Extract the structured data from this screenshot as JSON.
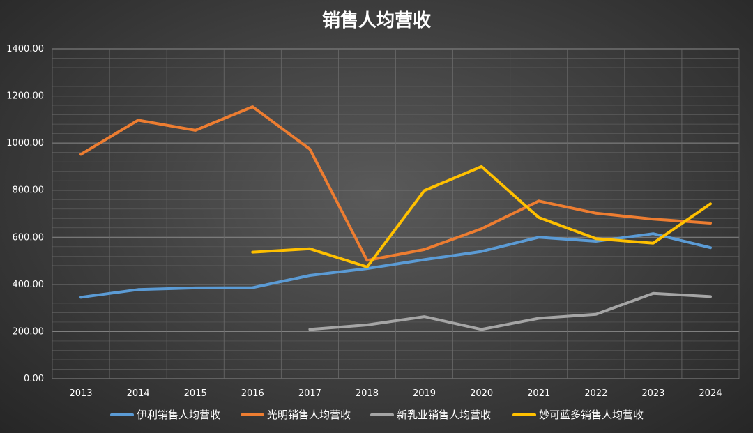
{
  "chart_data": {
    "type": "line",
    "title": "销售人均营收",
    "xlabel": "",
    "ylabel": "",
    "categories": [
      "2013",
      "2014",
      "2015",
      "2016",
      "2017",
      "2018",
      "2019",
      "2020",
      "2021",
      "2022",
      "2023",
      "2024"
    ],
    "ylim": [
      0,
      1400
    ],
    "yticks": [
      "0.00",
      "200.00",
      "400.00",
      "600.00",
      "800.00",
      "1000.00",
      "1200.00",
      "1400.00"
    ],
    "grid": true,
    "legend_position": "bottom",
    "series": [
      {
        "name": "伊利销售人均营收",
        "color": "#5B9BD5",
        "values": [
          345,
          378,
          385,
          386,
          438,
          467,
          505,
          540,
          600,
          583,
          615,
          556
        ]
      },
      {
        "name": "光明销售人均营收",
        "color": "#ED7D31",
        "values": [
          952,
          1097,
          1054,
          1154,
          974,
          502,
          548,
          636,
          754,
          702,
          677,
          660
        ]
      },
      {
        "name": "新乳业销售人均营收",
        "color": "#A5A5A5",
        "values": [
          null,
          null,
          null,
          null,
          209,
          228,
          263,
          209,
          256,
          273,
          362,
          348
        ]
      },
      {
        "name": "妙可蓝多销售人均营收",
        "color": "#FFC000",
        "values": [
          null,
          null,
          null,
          537,
          551,
          474,
          798,
          900,
          684,
          594,
          575,
          742
        ]
      }
    ]
  }
}
